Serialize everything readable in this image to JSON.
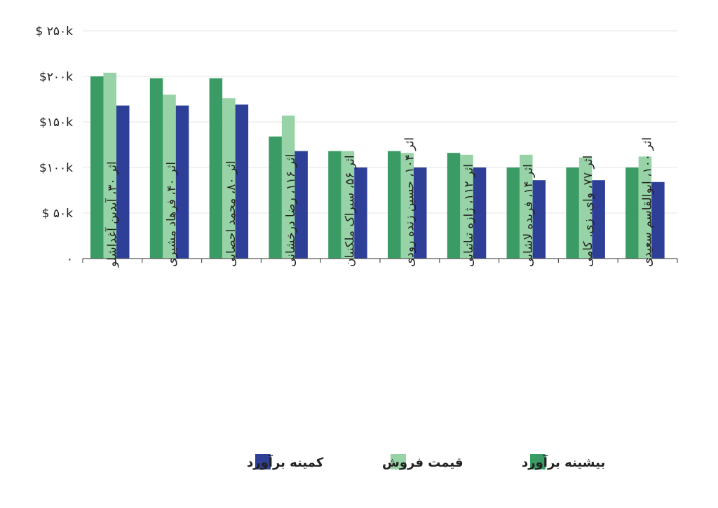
{
  "chart_data": {
    "type": "bar",
    "categories": [
      "اثر ۳۰، آیدین آغداشلو",
      "اثر ۴۰، فرهاد مشیری",
      "اثر ۸۰، محمد احصایی",
      "اثر ۱۱۶، رضا درخشانی",
      "اثر ۵۶، سیراک ملکنیان",
      "اثر ۱۰۴، حسین زنده رودی",
      "اثر ۱۱۲، ژازه تباتبایی",
      "اثر ۱۴، فریده لاشایی",
      "اثر ۷۷، وای. زی. کامی",
      "اثر ۱۰۰، ابوالقاسم سعیدی"
    ],
    "series": [
      {
        "name": "بیشینه برآورد",
        "color": "#3a9b65",
        "values": [
          200000,
          198000,
          198000,
          134000,
          118000,
          118000,
          116000,
          100000,
          100000,
          100000
        ]
      },
      {
        "name": "قیمت فروش",
        "color": "#97d3a6",
        "values": [
          204000,
          180000,
          176000,
          157000,
          118000,
          116000,
          114000,
          114000,
          111000,
          112000
        ]
      },
      {
        "name": "کمینه برآورد",
        "color": "#2e3f98",
        "values": [
          168000,
          168000,
          169000,
          118000,
          100000,
          100000,
          100000,
          86000,
          86000,
          84000
        ]
      }
    ],
    "ylim": [
      0,
      250000
    ],
    "yticks": [
      {
        "value": 0,
        "label": "۰"
      },
      {
        "value": 50000,
        "label": "$ ۵۰k"
      },
      {
        "value": 100000,
        "label": "$۱۰۰k"
      },
      {
        "value": 150000,
        "label": "$۱۵۰k"
      },
      {
        "value": 200000,
        "label": "$۲۰۰k"
      },
      {
        "value": 250000,
        "label": "$ ۲۵۰k"
      }
    ],
    "grid": true,
    "legend_position": "bottom"
  }
}
